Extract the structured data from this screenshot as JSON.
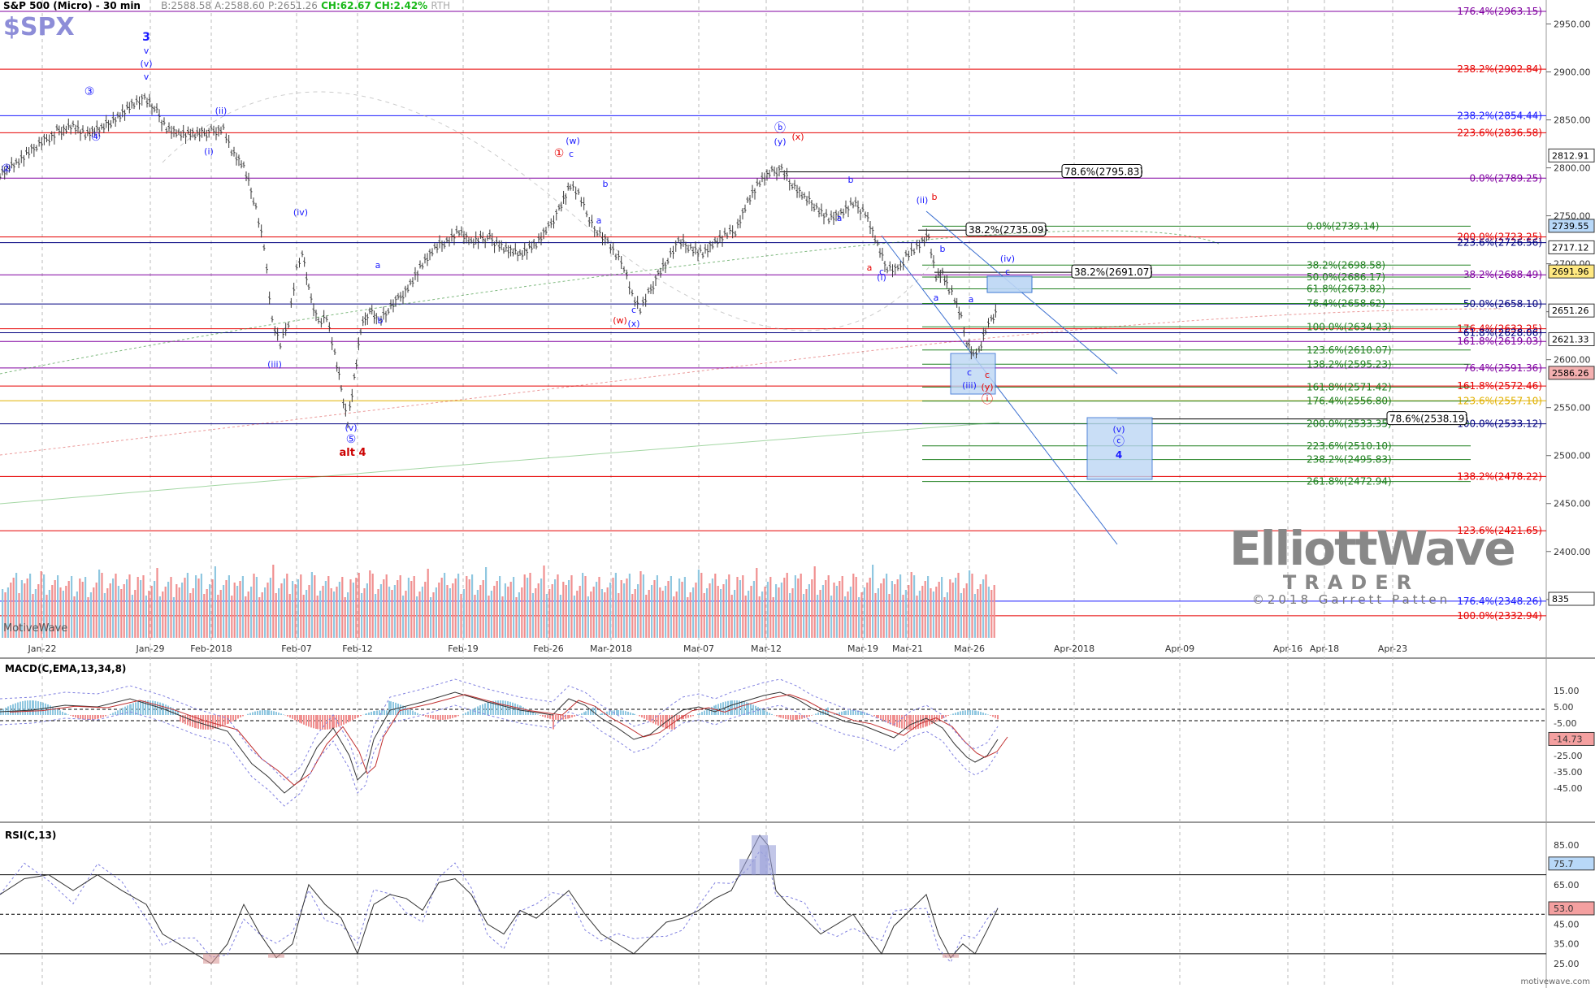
{
  "header": {
    "title": "S&P 500 (Micro) - 30 min",
    "bid": "B:2588.58",
    "ask": "A:2588.60",
    "price": "P:2651.26",
    "change": "CH:62.67",
    "change_pct": "CH:2.42%",
    "session": "RTH",
    "symbol": "$SPX"
  },
  "panels": {
    "macd_label": "MACD(C,EMA,13,34,8)",
    "rsi_label": "RSI(C,13)"
  },
  "branding": {
    "ewt_line1": "ElliottWave",
    "ewt_line2": "TRADER",
    "ewt_line3": "©2018 Garrett Patten",
    "motivewave": "MotiveWave",
    "motivewave_url": "motivewave.com"
  },
  "colors": {
    "up": "#3a3a3a",
    "vol_up": "#8fc7e0",
    "vol_down": "#f08f8f",
    "red": "#e60000",
    "blue": "#1a1aff",
    "purple": "#8000a0",
    "green": "#208020",
    "yellow": "#e0b000",
    "navy": "#000080"
  },
  "chart_data": {
    "type": "line",
    "ylim": [
      2310,
      2975
    ],
    "y_ticks": [
      "2950.00",
      "2900.00",
      "2850.00",
      "2800.00",
      "2750.00",
      "2700.00",
      "2650.00",
      "2600.00",
      "2550.00",
      "2500.00",
      "2450.00",
      "2400.00",
      "2350.00"
    ],
    "x_ticks": [
      "Jan-22",
      "Jan-29",
      "Feb-2018",
      "Feb-07",
      "Feb-12",
      "Feb-19",
      "Feb-26",
      "Mar-2018",
      "Mar-07",
      "Mar-12",
      "Mar-19",
      "Mar-21",
      "Mar-26",
      "Apr-2018",
      "Apr-09",
      "Apr-16",
      "Apr-18",
      "Apr-23"
    ],
    "price_boxes": [
      {
        "v": 2812.91,
        "label": "2812.91"
      },
      {
        "v": 2739.55,
        "label": "2739.55"
      },
      {
        "v": 2717.12,
        "label": "2717.12"
      },
      {
        "v": 2691.96,
        "label": "2691.96"
      },
      {
        "v": 2651.26,
        "label": "2651.26"
      },
      {
        "v": 2621.33,
        "label": "2621.33"
      },
      {
        "v": 2586.26,
        "label": "2586.26"
      },
      {
        "v": 2478.22,
        "label": "835"
      }
    ],
    "fib_levels": [
      {
        "label": "176.4%(2963.15)",
        "v": 2963.15,
        "color": "purple"
      },
      {
        "label": "238.2%(2902.84)",
        "v": 2902.84,
        "color": "red"
      },
      {
        "label": "238.2%(2854.44)",
        "v": 2854.44,
        "color": "blue"
      },
      {
        "label": "223.6%(2836.58)",
        "v": 2836.58,
        "color": "red"
      },
      {
        "label": "0.0%(2789.25)",
        "v": 2789.25,
        "color": "purple"
      },
      {
        "label": "200.0%(2723.25)",
        "v": 2728.0,
        "color": "red"
      },
      {
        "label": "223.6%(2726.56)",
        "v": 2722.0,
        "color": "navy"
      },
      {
        "label": "38.2%(2688.49)",
        "v": 2688.49,
        "color": "purple"
      },
      {
        "label": "50.0%(2658.10)",
        "v": 2658.1,
        "color": "navy"
      },
      {
        "label": "176.4%(2632.25)",
        "v": 2632.25,
        "color": "red"
      },
      {
        "label": "61.8%(2628.06)",
        "v": 2628.06,
        "color": "navy"
      },
      {
        "label": "161.8%(2619.03)",
        "v": 2619.03,
        "color": "purple"
      },
      {
        "label": "76.4%(2591.36)",
        "v": 2591.36,
        "color": "purple"
      },
      {
        "label": "161.8%(2572.46)",
        "v": 2572.46,
        "color": "red"
      },
      {
        "label": "123.6%(2557.10)",
        "v": 2557.1,
        "color": "yellow"
      },
      {
        "label": "100.0%(2533.12)",
        "v": 2533.12,
        "color": "navy"
      },
      {
        "label": "138.2%(2478.22)",
        "v": 2478.22,
        "color": "red"
      },
      {
        "label": "123.6%(2421.65)",
        "v": 2421.65,
        "color": "red"
      },
      {
        "label": "176.4%(2348.26)",
        "v": 2348.26,
        "color": "blue"
      },
      {
        "label": "100.0%(2332.94)",
        "v": 2332.94,
        "color": "red"
      }
    ],
    "green_fibs": [
      {
        "label": "0.0%(2739.14)",
        "v": 2739.14
      },
      {
        "label": "38.2%(2698.58)",
        "v": 2698.58
      },
      {
        "label": "50.0%(2686.17)",
        "v": 2686.17
      },
      {
        "label": "61.8%(2673.82)",
        "v": 2673.82
      },
      {
        "label": "76.4%(2658.62)",
        "v": 2658.62
      },
      {
        "label": "100.0%(2634.23)",
        "v": 2634.23
      },
      {
        "label": "123.6%(2610.07)",
        "v": 2610.07
      },
      {
        "label": "138.2%(2595.23)",
        "v": 2595.23
      },
      {
        "label": "161.8%(2571.42)",
        "v": 2571.42
      },
      {
        "label": "176.4%(2556.80)",
        "v": 2556.8
      },
      {
        "label": "200.0%(2533.35)",
        "v": 2533.35
      },
      {
        "label": "223.6%(2510.10)",
        "v": 2510.1
      },
      {
        "label": "238.2%(2495.83)",
        "v": 2495.83
      },
      {
        "label": "261.8%(2472.94)",
        "v": 2472.94
      }
    ],
    "boxed_fibs": [
      {
        "label": "78.6%(2795.83)",
        "v": 2795.83
      },
      {
        "label": "38.2%(2735.09)",
        "v": 2735.09
      },
      {
        "label": "38.2%(2691.07)",
        "v": 2691.07
      },
      {
        "label": "78.6%(2538.19)",
        "v": 2538.19
      }
    ],
    "price_path": [
      [
        0,
        2795
      ],
      [
        20,
        2805
      ],
      [
        45,
        2822
      ],
      [
        70,
        2838
      ],
      [
        90,
        2845
      ],
      [
        105,
        2835
      ],
      [
        125,
        2840
      ],
      [
        145,
        2855
      ],
      [
        165,
        2868
      ],
      [
        178,
        2872
      ],
      [
        190,
        2862
      ],
      [
        205,
        2843
      ],
      [
        220,
        2836
      ],
      [
        240,
        2834
      ],
      [
        260,
        2838
      ],
      [
        275,
        2842
      ],
      [
        285,
        2818
      ],
      [
        300,
        2800
      ],
      [
        315,
        2760
      ],
      [
        325,
        2720
      ],
      [
        335,
        2640
      ],
      [
        345,
        2615
      ],
      [
        355,
        2640
      ],
      [
        365,
        2695
      ],
      [
        372,
        2712
      ],
      [
        380,
        2672
      ],
      [
        392,
        2640
      ],
      [
        402,
        2645
      ],
      [
        412,
        2605
      ],
      [
        420,
        2570
      ],
      [
        428,
        2535
      ],
      [
        436,
        2580
      ],
      [
        444,
        2630
      ],
      [
        455,
        2655
      ],
      [
        466,
        2640
      ],
      [
        478,
        2652
      ],
      [
        490,
        2662
      ],
      [
        505,
        2680
      ],
      [
        520,
        2700
      ],
      [
        535,
        2715
      ],
      [
        550,
        2725
      ],
      [
        565,
        2735
      ],
      [
        580,
        2722
      ],
      [
        600,
        2728
      ],
      [
        620,
        2718
      ],
      [
        640,
        2710
      ],
      [
        660,
        2720
      ],
      [
        675,
        2737
      ],
      [
        688,
        2758
      ],
      [
        702,
        2782
      ],
      [
        712,
        2772
      ],
      [
        722,
        2752
      ],
      [
        735,
        2735
      ],
      [
        748,
        2722
      ],
      [
        758,
        2708
      ],
      [
        768,
        2698
      ],
      [
        778,
        2668
      ],
      [
        788,
        2652
      ],
      [
        798,
        2668
      ],
      [
        810,
        2690
      ],
      [
        822,
        2705
      ],
      [
        835,
        2722
      ],
      [
        850,
        2718
      ],
      [
        865,
        2712
      ],
      [
        880,
        2722
      ],
      [
        895,
        2730
      ],
      [
        905,
        2735
      ],
      [
        920,
        2765
      ],
      [
        935,
        2785
      ],
      [
        950,
        2795
      ],
      [
        962,
        2800
      ],
      [
        975,
        2783
      ],
      [
        990,
        2768
      ],
      [
        1005,
        2760
      ],
      [
        1020,
        2748
      ],
      [
        1035,
        2752
      ],
      [
        1050,
        2762
      ],
      [
        1065,
        2755
      ],
      [
        1080,
        2720
      ],
      [
        1092,
        2695
      ],
      [
        1105,
        2692
      ],
      [
        1115,
        2710
      ],
      [
        1125,
        2715
      ],
      [
        1135,
        2722
      ],
      [
        1143,
        2728
      ],
      [
        1152,
        2688
      ],
      [
        1160,
        2690
      ],
      [
        1168,
        2672
      ],
      [
        1175,
        2665
      ],
      [
        1183,
        2645
      ],
      [
        1190,
        2618
      ],
      [
        1198,
        2603
      ],
      [
        1205,
        2610
      ],
      [
        1213,
        2632
      ],
      [
        1220,
        2640
      ],
      [
        1228,
        2650
      ]
    ],
    "macd": [
      [
        0,
        2
      ],
      [
        40,
        3
      ],
      [
        80,
        6
      ],
      [
        120,
        5
      ],
      [
        160,
        10
      ],
      [
        200,
        4
      ],
      [
        240,
        -4
      ],
      [
        280,
        -10
      ],
      [
        310,
        -30
      ],
      [
        330,
        -38
      ],
      [
        350,
        -48
      ],
      [
        370,
        -40
      ],
      [
        390,
        -20
      ],
      [
        410,
        -8
      ],
      [
        430,
        -25
      ],
      [
        440,
        -40
      ],
      [
        450,
        -35
      ],
      [
        460,
        -15
      ],
      [
        480,
        3
      ],
      [
        520,
        8
      ],
      [
        560,
        14
      ],
      [
        600,
        8
      ],
      [
        640,
        3
      ],
      [
        680,
        0
      ],
      [
        700,
        10
      ],
      [
        720,
        6
      ],
      [
        740,
        -2
      ],
      [
        760,
        -8
      ],
      [
        780,
        -15
      ],
      [
        800,
        -12
      ],
      [
        820,
        -4
      ],
      [
        840,
        3
      ],
      [
        860,
        5
      ],
      [
        880,
        2
      ],
      [
        900,
        6
      ],
      [
        920,
        9
      ],
      [
        940,
        12
      ],
      [
        960,
        14
      ],
      [
        980,
        10
      ],
      [
        1000,
        4
      ],
      [
        1020,
        0
      ],
      [
        1040,
        -4
      ],
      [
        1060,
        -6
      ],
      [
        1080,
        -10
      ],
      [
        1100,
        -14
      ],
      [
        1120,
        -6
      ],
      [
        1140,
        -2
      ],
      [
        1160,
        -8
      ],
      [
        1175,
        -18
      ],
      [
        1190,
        -26
      ],
      [
        1200,
        -29
      ],
      [
        1215,
        -25
      ],
      [
        1228,
        -15
      ]
    ],
    "macd_ticks": [
      "15.00",
      "5.00",
      "-5.00",
      "-14.73",
      "-25.00",
      "-35.00",
      "-45.00"
    ],
    "rsi": [
      [
        0,
        60
      ],
      [
        30,
        68
      ],
      [
        60,
        70
      ],
      [
        90,
        62
      ],
      [
        120,
        70
      ],
      [
        150,
        62
      ],
      [
        180,
        55
      ],
      [
        200,
        40
      ],
      [
        220,
        35
      ],
      [
        240,
        30
      ],
      [
        260,
        25
      ],
      [
        280,
        35
      ],
      [
        300,
        55
      ],
      [
        320,
        40
      ],
      [
        340,
        28
      ],
      [
        360,
        35
      ],
      [
        380,
        65
      ],
      [
        400,
        55
      ],
      [
        420,
        48
      ],
      [
        440,
        30
      ],
      [
        460,
        55
      ],
      [
        480,
        60
      ],
      [
        500,
        58
      ],
      [
        520,
        52
      ],
      [
        540,
        66
      ],
      [
        560,
        68
      ],
      [
        580,
        60
      ],
      [
        600,
        45
      ],
      [
        620,
        40
      ],
      [
        640,
        52
      ],
      [
        660,
        48
      ],
      [
        680,
        55
      ],
      [
        700,
        62
      ],
      [
        720,
        50
      ],
      [
        740,
        40
      ],
      [
        760,
        35
      ],
      [
        780,
        30
      ],
      [
        800,
        38
      ],
      [
        820,
        46
      ],
      [
        840,
        48
      ],
      [
        860,
        52
      ],
      [
        880,
        58
      ],
      [
        900,
        62
      ],
      [
        920,
        78
      ],
      [
        935,
        90
      ],
      [
        945,
        85
      ],
      [
        955,
        62
      ],
      [
        970,
        55
      ],
      [
        990,
        48
      ],
      [
        1010,
        40
      ],
      [
        1030,
        45
      ],
      [
        1050,
        50
      ],
      [
        1070,
        38
      ],
      [
        1085,
        30
      ],
      [
        1100,
        44
      ],
      [
        1120,
        52
      ],
      [
        1140,
        60
      ],
      [
        1155,
        40
      ],
      [
        1170,
        28
      ],
      [
        1185,
        35
      ],
      [
        1200,
        30
      ],
      [
        1215,
        42
      ],
      [
        1228,
        53
      ]
    ],
    "rsi_ticks": [
      "85.00",
      "75.7",
      "65.00",
      "53.0",
      "45.00",
      "35.00",
      "25.00"
    ]
  }
}
